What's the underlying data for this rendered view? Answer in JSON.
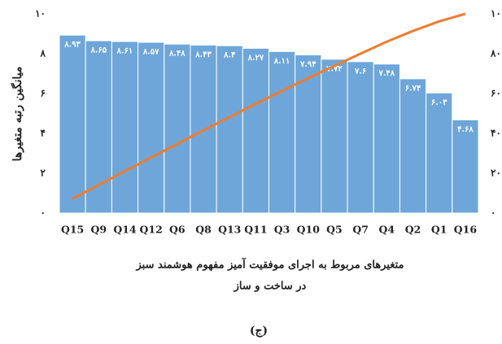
{
  "chart_data": {
    "type": "bar",
    "categories": [
      "Q15",
      "Q9",
      "Q14",
      "Q12",
      "Q6",
      "Q8",
      "Q13",
      "Q11",
      "Q3",
      "Q10",
      "Q5",
      "Q7",
      "Q4",
      "Q2",
      "Q1",
      "Q16"
    ],
    "series": [
      {
        "type": "bar",
        "color": "#6ea6d9",
        "values": [
          8.93,
          8.65,
          8.61,
          8.57,
          8.48,
          8.43,
          8.4,
          8.27,
          8.11,
          7.94,
          7.72,
          7.6,
          7.48,
          6.74,
          6.03,
          4.68
        ],
        "value_labels": [
          "۸.۹۳",
          "۸.۶۵",
          "۸.۶۱",
          "۸.۵۷",
          "۸.۴۸",
          "۸.۴۳",
          "۸.۴",
          "۸.۲۷",
          "۸.۱۱",
          "۷.۹۴",
          "۷.۷۲",
          "۷.۶",
          "۷.۴۸",
          "۶.۷۴",
          "۶.۰۳",
          "۴.۶۸"
        ]
      },
      {
        "type": "line",
        "axis": "y2",
        "color": "#ed7d31",
        "values": [
          7.2,
          14.1,
          21.0,
          27.9,
          34.7,
          41.5,
          48.2,
          54.8,
          61.3,
          67.7,
          73.9,
          80.0,
          86.0,
          91.4,
          96.2,
          100
        ]
      }
    ],
    "ylim": [
      0,
      10
    ],
    "yticks": [
      {
        "value": 0,
        "label": "۰"
      },
      {
        "value": 2,
        "label": "۲"
      },
      {
        "value": 4,
        "label": "۴"
      },
      {
        "value": 6,
        "label": "۶"
      },
      {
        "value": 8,
        "label": "۸"
      },
      {
        "value": 10,
        "label": "۱۰"
      }
    ],
    "y2lim": [
      0,
      100
    ],
    "y2ticks": [
      {
        "value": 0,
        "label": "۰"
      },
      {
        "value": 20,
        "label": "۲۰"
      },
      {
        "value": 40,
        "label": "۴۰"
      },
      {
        "value": 60,
        "label": "۶۰"
      },
      {
        "value": 80,
        "label": "۸۰"
      },
      {
        "value": 100,
        "label": "۱۰۰"
      }
    ],
    "ylabel": "میانگین رتبه متغیرها",
    "xlabel": [
      "متغیرهای مربوط به اجرای موفقیت آمیز مفهوم هوشمند سبز",
      "در ساخت و ساز"
    ]
  },
  "caption": "(ج)"
}
